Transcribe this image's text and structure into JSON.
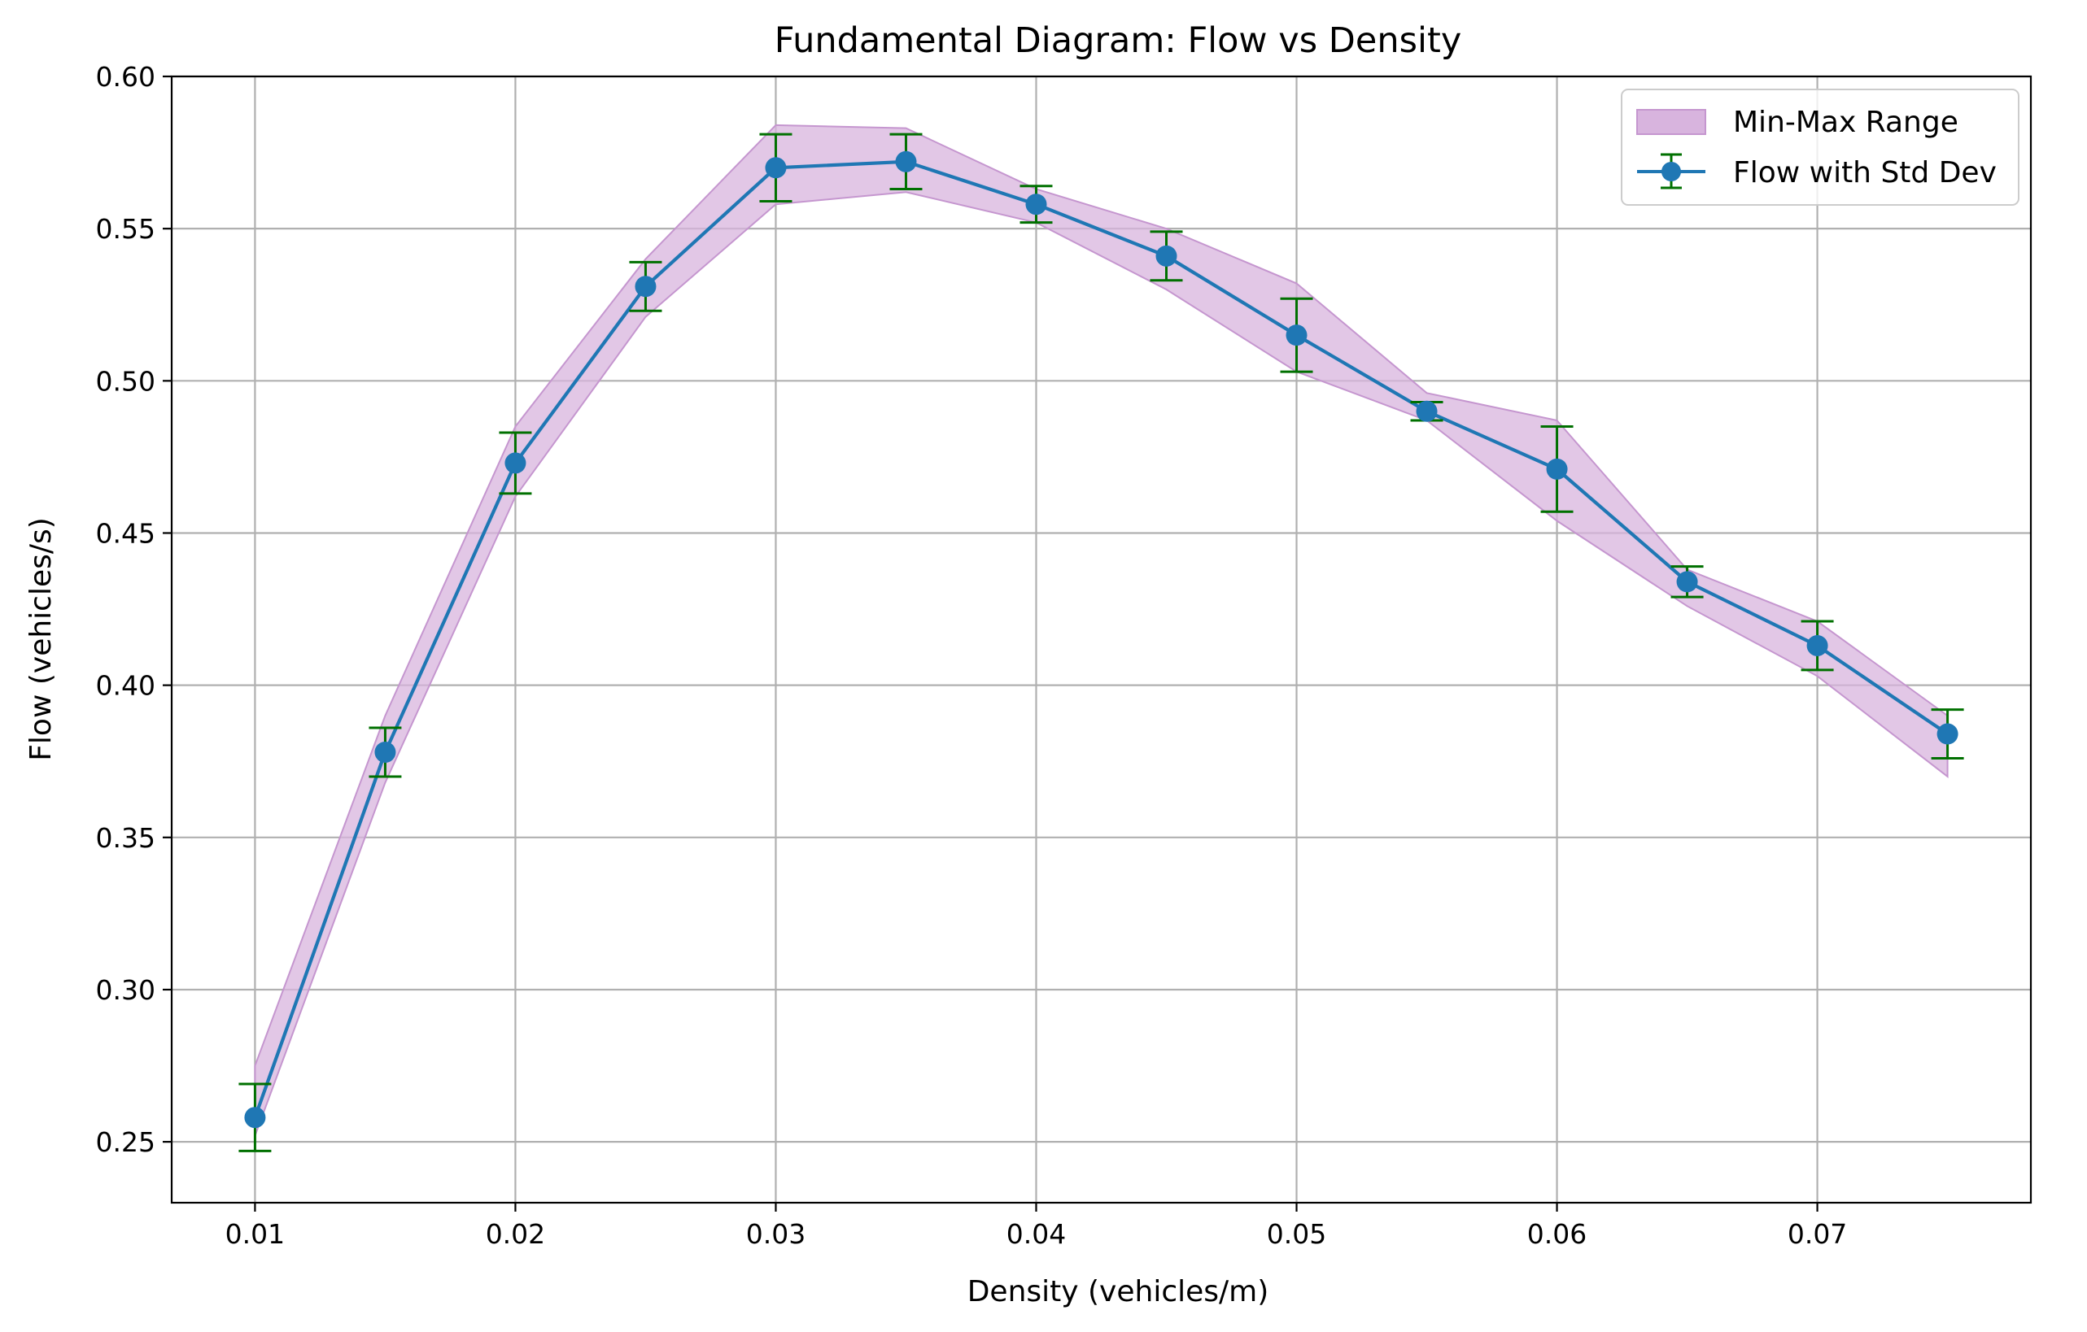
{
  "chart_data": {
    "type": "line",
    "title": "Fundamental Diagram: Flow vs Density",
    "xlabel": "Density (vehicles/m)",
    "ylabel": "Flow (vehicles/s)",
    "xlim": [
      0.0068,
      0.0782
    ],
    "ylim": [
      0.23,
      0.6
    ],
    "xticks": [
      "0.01",
      "0.02",
      "0.03",
      "0.04",
      "0.05",
      "0.06",
      "0.07"
    ],
    "yticks": [
      "0.25",
      "0.30",
      "0.35",
      "0.40",
      "0.45",
      "0.50",
      "0.55",
      "0.60"
    ],
    "grid": true,
    "legend_position": "top-right",
    "series": [
      {
        "name": "Flow with Std Dev",
        "color": "#1f77b4",
        "error_color": "#007000",
        "x": [
          0.01,
          0.015,
          0.02,
          0.025,
          0.03,
          0.035,
          0.04,
          0.045,
          0.05,
          0.055,
          0.06,
          0.065,
          0.07,
          0.075
        ],
        "y": [
          0.258,
          0.378,
          0.473,
          0.531,
          0.57,
          0.572,
          0.558,
          0.541,
          0.515,
          0.49,
          0.471,
          0.434,
          0.413,
          0.384
        ],
        "std": [
          0.011,
          0.008,
          0.01,
          0.008,
          0.011,
          0.009,
          0.006,
          0.008,
          0.012,
          0.003,
          0.014,
          0.005,
          0.008,
          0.008
        ]
      }
    ],
    "band": {
      "name": "Min-Max Range",
      "color": "#d8b4de",
      "edge_color": "#c596cf",
      "min": [
        0.252,
        0.368,
        0.462,
        0.521,
        0.558,
        0.562,
        0.552,
        0.53,
        0.503,
        0.487,
        0.454,
        0.426,
        0.403,
        0.37
      ],
      "max": [
        0.275,
        0.39,
        0.485,
        0.54,
        0.584,
        0.583,
        0.563,
        0.55,
        0.532,
        0.496,
        0.487,
        0.438,
        0.421,
        0.39
      ]
    }
  }
}
